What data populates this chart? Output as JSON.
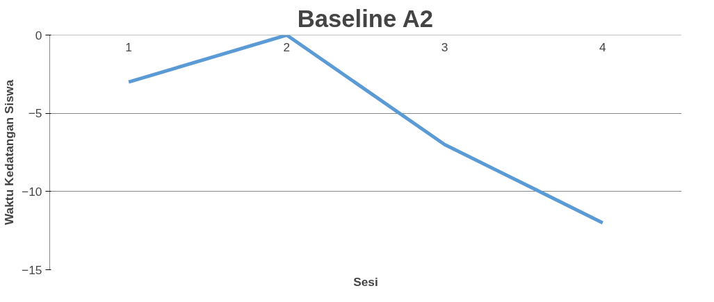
{
  "chart_data": {
    "type": "line",
    "title": "Baseline A2",
    "xlabel": "Sesi",
    "ylabel": "Waktu Kedatangan Siswa",
    "categories": [
      "1",
      "2",
      "3",
      "4"
    ],
    "series": [
      {
        "color": "#5b9bd5",
        "values": [
          -3,
          0,
          -7,
          -12
        ]
      }
    ],
    "ylim": [
      -15,
      0
    ],
    "yticks": [
      0,
      -5,
      -10,
      -15
    ],
    "grid": "y",
    "marker": "none",
    "line_style": "solid"
  }
}
